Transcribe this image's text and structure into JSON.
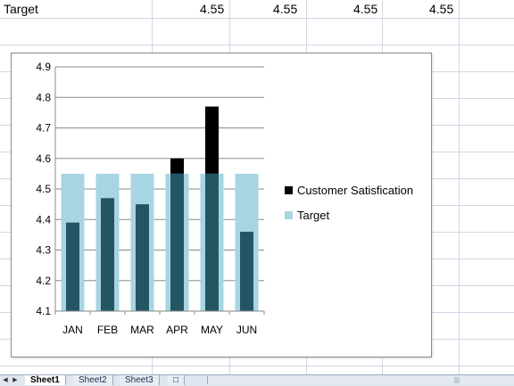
{
  "row": {
    "label": "Target",
    "values": [
      "4.55",
      "4.55",
      "4.55",
      "4.55"
    ]
  },
  "chart_data": {
    "type": "bar",
    "categories": [
      "JAN",
      "FEB",
      "MAR",
      "APR",
      "MAY",
      "JUN"
    ],
    "series": [
      {
        "name": "Customer Satisfication",
        "values": [
          4.39,
          4.47,
          4.45,
          4.6,
          4.77,
          4.36
        ],
        "color": "#000000"
      },
      {
        "name": "Target",
        "values": [
          4.55,
          4.55,
          4.55,
          4.55,
          4.55,
          4.55
        ],
        "color": "#a7d5e1"
      }
    ],
    "overlap_color": "#245565",
    "ylim": [
      4.1,
      4.9
    ],
    "yticks": [
      "4.1",
      "4.2",
      "4.3",
      "4.4",
      "4.5",
      "4.6",
      "4.7",
      "4.8",
      "4.9"
    ],
    "title": "",
    "xlabel": "",
    "ylabel": "",
    "grid": true,
    "legend_position": "right"
  },
  "tabs": {
    "sheets": [
      "Sheet1",
      "Sheet2",
      "Sheet3"
    ],
    "active": "Sheet1"
  }
}
